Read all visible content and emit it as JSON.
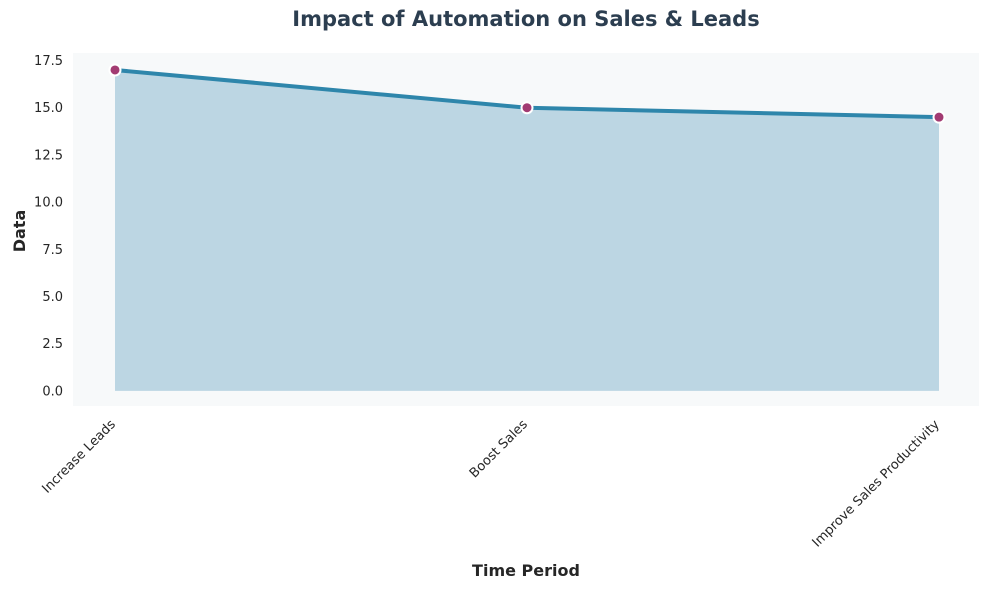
{
  "chart_data": {
    "type": "area",
    "title": "Impact of Automation on Sales & Leads",
    "xlabel": "Time Period",
    "ylabel": "Data",
    "categories": [
      "Increase Leads",
      "Boost Sales",
      "Improve Sales Productivity"
    ],
    "series": [
      {
        "values": [
          17.0,
          15.0,
          14.5
        ]
      }
    ],
    "ylim": [
      -0.8,
      17.9
    ],
    "yticks": [
      "0.0",
      "2.5",
      "5.0",
      "7.5",
      "10.0",
      "12.5",
      "15.0",
      "17.5"
    ],
    "grid": false,
    "colors": {
      "background": "#ffffff",
      "plot_background": "#f7f9fa",
      "fill": "#bcd6e3",
      "line": "#2e86ab",
      "marker": "#a23b72",
      "marker_edge": "#ffffff",
      "title": "#2c3e50",
      "text": "#262626"
    }
  }
}
